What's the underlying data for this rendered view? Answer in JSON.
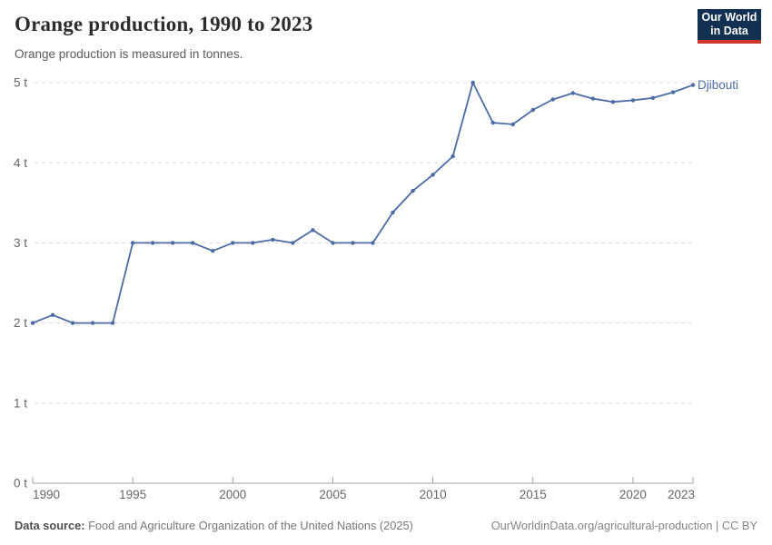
{
  "header": {
    "title": "Orange production, 1990 to 2023",
    "subtitle": "Orange production is measured in tonnes.",
    "logo": {
      "line1": "Our World",
      "line2": "in Data",
      "bg_color": "#123052",
      "accent_color": "#cf3830"
    }
  },
  "chart_data": {
    "type": "line",
    "title": "Orange production, 1990 to 2023",
    "entity": "Djibouti",
    "unit": "t",
    "line_color": "#4C6CA5",
    "grid": true,
    "legend_position": "end-of-line",
    "xlabel": "",
    "ylabel": "",
    "ylim": [
      0,
      5
    ],
    "yticks": [
      0,
      1,
      2,
      3,
      4,
      5
    ],
    "ytick_labels": [
      "0 t",
      "1 t",
      "2 t",
      "3 t",
      "4 t",
      "5 t"
    ],
    "xticks": [
      1990,
      1995,
      2000,
      2005,
      2010,
      2015,
      2020,
      2023
    ],
    "x": [
      1990,
      1991,
      1992,
      1993,
      1994,
      1995,
      1996,
      1997,
      1998,
      1999,
      2000,
      2001,
      2002,
      2003,
      2004,
      2005,
      2006,
      2007,
      2008,
      2009,
      2010,
      2011,
      2012,
      2013,
      2014,
      2015,
      2016,
      2017,
      2018,
      2019,
      2020,
      2021,
      2022,
      2023
    ],
    "values": [
      2,
      2.1,
      2,
      2,
      2,
      3,
      3,
      3,
      3,
      2.9,
      3,
      3,
      3.04,
      3,
      3.16,
      3,
      3,
      3,
      3.38,
      3.65,
      3.85,
      4.08,
      5,
      4.5,
      4.48,
      4.66,
      4.79,
      4.87,
      4.8,
      4.76,
      4.78,
      4.81,
      4.88,
      4.97
    ]
  },
  "footer": {
    "source_label": "Data source:",
    "source_text": " Food and Agriculture Organization of the United Nations (2025)",
    "link_text": "OurWorldinData.org/agricultural-production | CC BY"
  }
}
